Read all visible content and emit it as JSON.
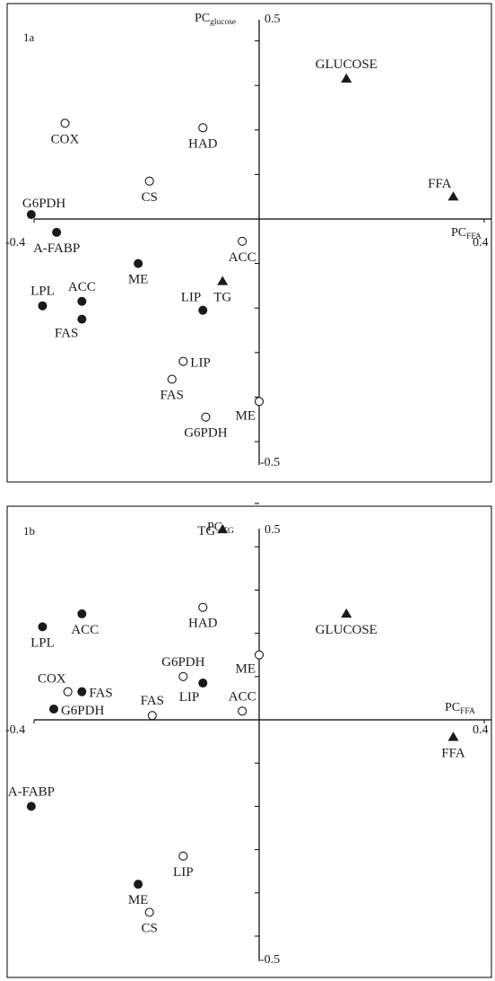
{
  "chart_data": [
    {
      "type": "scatter",
      "panel_label": "1a",
      "x_axis": {
        "label_main": "PC",
        "label_sub": "FFA",
        "range": [
          -0.4,
          0.4
        ],
        "tick_labels": [
          "-0.4",
          "0.4"
        ]
      },
      "y_axis": {
        "label_main": "PC",
        "label_sub": "glucose",
        "range": [
          -0.5,
          0.5
        ],
        "tick_labels": [
          "0.5",
          "-0.5"
        ]
      },
      "grid": false,
      "legend": "none",
      "marker_colors": {
        "filled": "#1a1a1a",
        "open_fill": "#ffffff",
        "stroke": "#1a1a1a"
      },
      "points": [
        {
          "label": "GLUCOSE",
          "x": 0.155,
          "y": 0.315,
          "marker": "triangle",
          "label_pos": "above"
        },
        {
          "label": "FFA",
          "x": 0.345,
          "y": 0.05,
          "marker": "triangle",
          "label_pos": "above-left"
        },
        {
          "label": "TG",
          "x": -0.065,
          "y": -0.14,
          "marker": "triangle",
          "label_pos": "below"
        },
        {
          "label": "COX",
          "x": -0.345,
          "y": 0.215,
          "marker": "open",
          "label_pos": "below"
        },
        {
          "label": "HAD",
          "x": -0.1,
          "y": 0.205,
          "marker": "open",
          "label_pos": "below"
        },
        {
          "label": "CS",
          "x": -0.195,
          "y": 0.085,
          "marker": "open",
          "label_pos": "below"
        },
        {
          "label": "ACC",
          "x": -0.03,
          "y": -0.05,
          "marker": "open",
          "label_pos": "below"
        },
        {
          "label": "LIP",
          "x": -0.135,
          "y": -0.32,
          "marker": "open",
          "label_pos": "right"
        },
        {
          "label": "FAS",
          "x": -0.155,
          "y": -0.36,
          "marker": "open",
          "label_pos": "below"
        },
        {
          "label": "ME",
          "x": 0.0,
          "y": -0.41,
          "marker": "open",
          "label_pos": "below-left"
        },
        {
          "label": "G6PDH",
          "x": -0.095,
          "y": -0.445,
          "marker": "open",
          "label_pos": "below"
        },
        {
          "label": "G6PDH",
          "x": -0.405,
          "y": 0.01,
          "marker": "filled",
          "label_pos": "above-right"
        },
        {
          "label": "A-FABP",
          "x": -0.36,
          "y": -0.03,
          "marker": "filled",
          "label_pos": "below"
        },
        {
          "label": "ME",
          "x": -0.215,
          "y": -0.1,
          "marker": "filled",
          "label_pos": "below"
        },
        {
          "label": "LIP",
          "x": -0.1,
          "y": -0.205,
          "marker": "filled",
          "label_pos": "above-left"
        },
        {
          "label": "LPL",
          "x": -0.385,
          "y": -0.195,
          "marker": "filled",
          "label_pos": "above"
        },
        {
          "label": "ACC",
          "x": -0.315,
          "y": -0.185,
          "marker": "filled",
          "label_pos": "above"
        },
        {
          "label": "FAS",
          "x": -0.315,
          "y": -0.225,
          "marker": "filled",
          "label_pos": "below-left"
        }
      ]
    },
    {
      "type": "scatter",
      "panel_label": "1b",
      "x_axis": {
        "label_main": "PC",
        "label_sub": "FFA",
        "range": [
          -0.4,
          0.4
        ],
        "tick_labels": [
          "-0.4",
          "0.4"
        ]
      },
      "y_axis": {
        "label_main": "PC",
        "label_sub": "TG",
        "range": [
          -0.5,
          0.5
        ],
        "tick_labels": [
          "0.5",
          "-0.5"
        ]
      },
      "grid": false,
      "legend": "none",
      "marker_colors": {
        "filled": "#1a1a1a",
        "open_fill": "#ffffff",
        "stroke": "#1a1a1a"
      },
      "points": [
        {
          "label": "TG",
          "x": -0.065,
          "y": 0.44,
          "marker": "triangle",
          "label_pos": "left"
        },
        {
          "label": "GLUCOSE",
          "x": 0.155,
          "y": 0.245,
          "marker": "triangle",
          "label_pos": "below"
        },
        {
          "label": "FFA",
          "x": 0.345,
          "y": -0.04,
          "marker": "triangle",
          "label_pos": "below"
        },
        {
          "label": "HAD",
          "x": -0.1,
          "y": 0.26,
          "marker": "open",
          "label_pos": "below"
        },
        {
          "label": "ME",
          "x": 0.0,
          "y": 0.15,
          "marker": "open",
          "label_pos": "below-left"
        },
        {
          "label": "G6PDH",
          "x": -0.135,
          "y": 0.1,
          "marker": "open",
          "label_pos": "above"
        },
        {
          "label": "ACC",
          "x": -0.03,
          "y": 0.02,
          "marker": "open",
          "label_pos": "above"
        },
        {
          "label": "FAS",
          "x": -0.19,
          "y": 0.01,
          "marker": "open",
          "label_pos": "above"
        },
        {
          "label": "COX",
          "x": -0.34,
          "y": 0.065,
          "marker": "open",
          "label_pos": "above-left"
        },
        {
          "label": "LIP",
          "x": -0.135,
          "y": -0.315,
          "marker": "open",
          "label_pos": "below"
        },
        {
          "label": "CS",
          "x": -0.195,
          "y": -0.445,
          "marker": "open",
          "label_pos": "below"
        },
        {
          "label": "ACC",
          "x": -0.315,
          "y": 0.245,
          "marker": "filled",
          "label_pos": "below-right"
        },
        {
          "label": "LPL",
          "x": -0.385,
          "y": 0.215,
          "marker": "filled",
          "label_pos": "below"
        },
        {
          "label": "FAS",
          "x": -0.315,
          "y": 0.065,
          "marker": "filled",
          "label_pos": "right"
        },
        {
          "label": "G6PDH",
          "x": -0.365,
          "y": 0.025,
          "marker": "filled",
          "label_pos": "right"
        },
        {
          "label": "LIP",
          "x": -0.1,
          "y": 0.085,
          "marker": "filled",
          "label_pos": "below-left"
        },
        {
          "label": "A-FABP",
          "x": -0.405,
          "y": -0.2,
          "marker": "filled",
          "label_pos": "above"
        },
        {
          "label": "ME",
          "x": -0.215,
          "y": -0.38,
          "marker": "filled",
          "label_pos": "below"
        }
      ]
    }
  ]
}
